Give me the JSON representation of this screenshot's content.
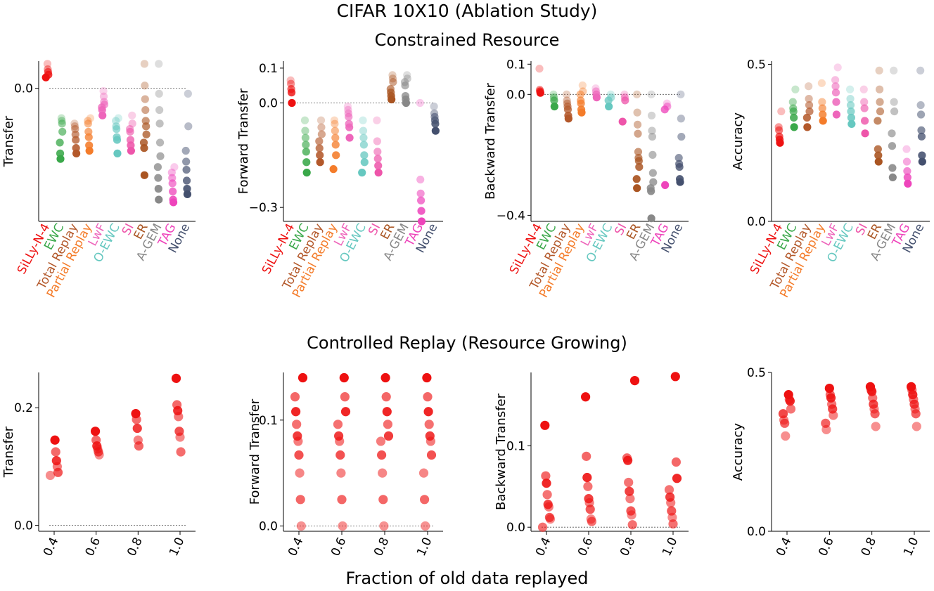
{
  "title": "CIFAR 10X10 (Ablation Study)",
  "top_subtitle": "Constrained Resource",
  "bottom_subtitle": "Controlled Replay (Resource Growing)",
  "bottom_xlabel": "Fraction of old data replayed",
  "colors": {
    "SiLLy-N-4": "#ee1111",
    "EWC": "#3aa84a",
    "Total Replay": "#b3582a",
    "Partial Replay": "#f47c2a",
    "LwF": "#ee66bb",
    "O-EWC": "#66c8c0",
    "SI": "#ee55aa",
    "ER": "#aa5522",
    "A-GEM": "#888888",
    "TAG": "#ee44bb",
    "None": "#44506e"
  },
  "chart_data": [
    {
      "type": "scatter",
      "ylabel": "Transfer",
      "ylim": [
        -0.49,
        0.1
      ],
      "yticks": [
        {
          "v": 0.0,
          "label": "0.0"
        }
      ],
      "zero_line": true,
      "categories": [
        "SiLLy-N-4",
        "EWC",
        "Total Replay",
        "Partial Replay",
        "LwF",
        "O-EWC",
        "SI",
        "ER",
        "A-GEM",
        "TAG",
        "None"
      ],
      "series": [
        {
          "name": "SiLLy-N-4",
          "values": [
            0.09,
            0.07,
            0.06,
            0.05,
            0.04
          ]
        },
        {
          "name": "EWC",
          "values": [
            -0.11,
            -0.12,
            -0.13,
            -0.16,
            -0.2,
            -0.24,
            -0.26
          ]
        },
        {
          "name": "Total Replay",
          "values": [
            -0.13,
            -0.14,
            -0.15,
            -0.17,
            -0.19,
            -0.22,
            -0.24
          ]
        },
        {
          "name": "Partial Replay",
          "values": [
            -0.11,
            -0.12,
            -0.13,
            -0.16,
            -0.18,
            -0.21,
            -0.23
          ]
        },
        {
          "name": "LwF",
          "values": [
            -0.01,
            -0.03,
            -0.05,
            -0.06,
            -0.07,
            -0.08,
            -0.1
          ]
        },
        {
          "name": "O-EWC",
          "values": [
            -0.11,
            -0.12,
            -0.14,
            -0.15,
            -0.18,
            -0.19,
            -0.24
          ]
        },
        {
          "name": "SI",
          "values": [
            -0.1,
            -0.13,
            -0.15,
            -0.16,
            -0.19,
            -0.21,
            -0.23
          ]
        },
        {
          "name": "ER",
          "values": [
            0.09,
            0.01,
            -0.04,
            -0.08,
            -0.12,
            -0.14,
            -0.17,
            -0.2,
            -0.22,
            -0.32
          ]
        },
        {
          "name": "A-GEM",
          "values": [
            0.09,
            -0.02,
            -0.08,
            -0.13,
            -0.2,
            -0.25,
            -0.29,
            -0.33,
            -0.37,
            -0.41
          ]
        },
        {
          "name": "TAG",
          "values": [
            -0.29,
            -0.31,
            -0.33,
            -0.35,
            -0.38,
            -0.41,
            -0.42
          ]
        },
        {
          "name": "None",
          "values": [
            -0.02,
            -0.14,
            -0.23,
            -0.27,
            -0.3,
            -0.34,
            -0.37,
            -0.39
          ]
        }
      ]
    },
    {
      "type": "scatter",
      "ylabel": "Forward Transfer",
      "ylim": [
        -0.34,
        0.12
      ],
      "yticks": [
        {
          "v": 0.1,
          "label": "0.1"
        },
        {
          "v": 0.0,
          "label": "0.0"
        },
        {
          "v": -0.3,
          "label": "−0.3"
        }
      ],
      "zero_line": true,
      "categories": [
        "SiLLy-N-4",
        "EWC",
        "Total Replay",
        "Partial Replay",
        "LwF",
        "O-EWC",
        "SI",
        "ER",
        "A-GEM",
        "TAG",
        "None"
      ],
      "series": [
        {
          "name": "SiLLy-N-4",
          "values": [
            0.065,
            0.055,
            0.04,
            0.03,
            0.0
          ]
        },
        {
          "name": "EWC",
          "values": [
            -0.05,
            -0.08,
            -0.1,
            -0.12,
            -0.14,
            -0.17,
            -0.2
          ]
        },
        {
          "name": "Total Replay",
          "values": [
            -0.05,
            -0.07,
            -0.09,
            -0.11,
            -0.13,
            -0.15,
            -0.17
          ]
        },
        {
          "name": "Partial Replay",
          "values": [
            -0.05,
            -0.06,
            -0.08,
            -0.1,
            -0.12,
            -0.15,
            -0.19
          ]
        },
        {
          "name": "LwF",
          "values": [
            -0.01,
            -0.02,
            -0.03,
            -0.04,
            -0.06,
            -0.07,
            -0.1
          ]
        },
        {
          "name": "O-EWC",
          "values": [
            -0.05,
            -0.08,
            -0.1,
            -0.12,
            -0.15,
            -0.17,
            -0.2
          ]
        },
        {
          "name": "SI",
          "values": [
            -0.05,
            -0.11,
            -0.14,
            -0.16,
            -0.18,
            -0.2
          ]
        },
        {
          "name": "ER",
          "values": [
            0.08,
            0.07,
            0.06,
            0.04,
            0.03,
            0.02,
            0.01
          ]
        },
        {
          "name": "A-GEM",
          "values": [
            0.08,
            0.07,
            0.06,
            0.05,
            0.02,
            0.01,
            0.0
          ]
        },
        {
          "name": "TAG",
          "values": [
            0.0,
            -0.22,
            -0.26,
            -0.28,
            -0.31,
            -0.34
          ]
        },
        {
          "name": "None",
          "values": [
            -0.01,
            -0.03,
            -0.04,
            -0.05,
            -0.06,
            -0.08
          ]
        }
      ]
    },
    {
      "type": "scatter",
      "ylabel": "Backward Transfer",
      "ylim": [
        -0.42,
        0.11
      ],
      "yticks": [
        {
          "v": 0.1,
          "label": "0.1"
        },
        {
          "v": 0.0,
          "label": "0.0"
        },
        {
          "v": -0.4,
          "label": "−0.4"
        }
      ],
      "zero_line": true,
      "categories": [
        "SiLLy-N-4",
        "EWC",
        "Total Replay",
        "Partial Replay",
        "LwF",
        "O-EWC",
        "SI",
        "ER",
        "A-GEM",
        "TAG",
        "None"
      ],
      "series": [
        {
          "name": "SiLLy-N-4",
          "values": [
            0.085,
            0.015,
            0.01,
            0.005
          ]
        },
        {
          "name": "EWC",
          "values": [
            0.0,
            -0.01,
            -0.02,
            -0.04
          ]
        },
        {
          "name": "Total Replay",
          "values": [
            0.0,
            -0.02,
            -0.03,
            -0.04,
            -0.05,
            -0.07,
            -0.08
          ]
        },
        {
          "name": "Partial Replay",
          "values": [
            0.03,
            0.01,
            0.0,
            -0.02,
            -0.03,
            -0.05,
            -0.06
          ]
        },
        {
          "name": "LwF",
          "values": [
            0.02,
            0.01,
            0.0,
            -0.01
          ]
        },
        {
          "name": "O-EWC",
          "values": [
            0.0,
            -0.01,
            -0.02,
            -0.04
          ]
        },
        {
          "name": "SI",
          "values": [
            0.0,
            -0.01,
            -0.02,
            -0.09
          ]
        },
        {
          "name": "ER",
          "values": [
            0.0,
            -0.06,
            -0.1,
            -0.13,
            -0.19,
            -0.21,
            -0.22,
            -0.24,
            -0.28,
            -0.31
          ]
        },
        {
          "name": "A-GEM",
          "values": [
            0.0,
            -0.07,
            -0.12,
            -0.14,
            -0.2,
            -0.26,
            -0.29,
            -0.31,
            -0.32,
            -0.41
          ]
        },
        {
          "name": "TAG",
          "values": [
            -0.03,
            -0.04,
            -0.05,
            -0.3
          ]
        },
        {
          "name": "None",
          "values": [
            0.0,
            -0.08,
            -0.14,
            -0.21,
            -0.23,
            -0.24,
            -0.28,
            -0.29
          ]
        }
      ]
    },
    {
      "type": "scatter",
      "ylabel": "Accuracy",
      "ylim": [
        0.0,
        0.51
      ],
      "yticks": [
        {
          "v": 0.5,
          "label": "0.5"
        },
        {
          "v": 0.0,
          "label": "0.0"
        }
      ],
      "zero_line": false,
      "categories": [
        "SiLLy-N-4",
        "EWC",
        "Total Replay",
        "Partial Replay",
        "LwF",
        "O-EWC",
        "SI",
        "ER",
        "A-GEM",
        "TAG",
        "None"
      ],
      "series": [
        {
          "name": "SiLLy-N-4",
          "values": [
            0.35,
            0.3,
            0.29,
            0.27,
            0.26,
            0.25
          ]
        },
        {
          "name": "EWC",
          "values": [
            0.42,
            0.38,
            0.36,
            0.35,
            0.33,
            0.3
          ]
        },
        {
          "name": "Total Replay",
          "values": [
            0.43,
            0.39,
            0.37,
            0.35,
            0.33,
            0.3
          ]
        },
        {
          "name": "Partial Replay",
          "values": [
            0.44,
            0.38,
            0.36,
            0.34,
            0.32
          ]
        },
        {
          "name": "LwF",
          "values": [
            0.49,
            0.45,
            0.43,
            0.41,
            0.38,
            0.34
          ]
        },
        {
          "name": "O-EWC",
          "values": [
            0.42,
            0.39,
            0.37,
            0.35,
            0.33,
            0.31
          ]
        },
        {
          "name": "SI",
          "values": [
            0.42,
            0.38,
            0.36,
            0.32,
            0.28
          ]
        },
        {
          "name": "ER",
          "values": [
            0.48,
            0.42,
            0.38,
            0.35,
            0.32,
            0.23,
            0.21,
            0.19
          ]
        },
        {
          "name": "A-GEM",
          "values": [
            0.48,
            0.38,
            0.35,
            0.28,
            0.24,
            0.17,
            0.14
          ]
        },
        {
          "name": "TAG",
          "values": [
            0.23,
            0.19,
            0.16,
            0.14,
            0.12
          ]
        },
        {
          "name": "None",
          "values": [
            0.48,
            0.37,
            0.34,
            0.29,
            0.27,
            0.21,
            0.19
          ]
        }
      ]
    },
    {
      "type": "scatter",
      "ylabel": "Transfer",
      "ylim": [
        -0.01,
        0.26
      ],
      "yticks": [
        {
          "v": 0.2,
          "label": "0.2"
        },
        {
          "v": 0.0,
          "label": "0.0"
        }
      ],
      "zero_line": true,
      "x": [
        0.4,
        0.6,
        0.8,
        1.0
      ],
      "xticklabels": [
        "0.4",
        "0.6",
        "0.8",
        "1.0"
      ],
      "groups": [
        [
          0.145,
          0.125,
          0.11,
          0.1,
          0.09,
          0.085
        ],
        [
          0.16,
          0.145,
          0.135,
          0.13,
          0.125,
          0.12
        ],
        [
          0.19,
          0.18,
          0.165,
          0.145,
          0.135
        ],
        [
          0.25,
          0.205,
          0.195,
          0.185,
          0.16,
          0.15,
          0.125
        ]
      ]
    },
    {
      "type": "scatter",
      "ylabel": "Forward Transfer",
      "ylim": [
        -0.005,
        0.145
      ],
      "yticks": [
        {
          "v": 0.1,
          "label": "0.1"
        },
        {
          "v": 0.0,
          "label": "0.0"
        }
      ],
      "zero_line": true,
      "x": [
        0.4,
        0.6,
        0.8,
        1.0
      ],
      "xticklabels": [
        "0.4",
        "0.6",
        "0.8",
        "1.0"
      ],
      "groups": [
        [
          0.14,
          0.122,
          0.108,
          0.096,
          0.085,
          0.08,
          0.067,
          0.05,
          0.025,
          0.0
        ],
        [
          0.14,
          0.122,
          0.108,
          0.096,
          0.085,
          0.08,
          0.067,
          0.05,
          0.025,
          0.0
        ],
        [
          0.14,
          0.122,
          0.108,
          0.096,
          0.085,
          0.08,
          0.067,
          0.05,
          0.025,
          0.0
        ],
        [
          0.14,
          0.122,
          0.108,
          0.096,
          0.085,
          0.08,
          0.067,
          0.05,
          0.025,
          0.0
        ]
      ]
    },
    {
      "type": "scatter",
      "ylabel": "Backward Transfer",
      "ylim": [
        -0.005,
        0.19
      ],
      "yticks": [
        {
          "v": 0.1,
          "label": "0.1"
        },
        {
          "v": 0.0,
          "label": "0.0"
        }
      ],
      "zero_line": true,
      "x": [
        0.4,
        0.6,
        0.8,
        1.0
      ],
      "xticklabels": [
        "0.4",
        "0.6",
        "0.8",
        "1.0"
      ],
      "groups": [
        [
          0.125,
          0.063,
          0.054,
          0.04,
          0.028,
          0.025,
          0.012,
          0.01,
          0.0
        ],
        [
          0.16,
          0.087,
          0.061,
          0.05,
          0.035,
          0.03,
          0.022,
          0.01,
          0.007
        ],
        [
          0.18,
          0.085,
          0.082,
          0.055,
          0.044,
          0.035,
          0.02,
          0.015,
          0.003
        ],
        [
          0.185,
          0.08,
          0.06,
          0.046,
          0.037,
          0.03,
          0.02,
          0.012,
          0.004
        ]
      ]
    },
    {
      "type": "scatter",
      "ylabel": "Accuracy",
      "ylim": [
        0.0,
        0.5
      ],
      "yticks": [
        {
          "v": 0.5,
          "label": "0.5"
        },
        {
          "v": 0.0,
          "label": "0.0"
        }
      ],
      "zero_line": false,
      "x": [
        0.4,
        0.6,
        0.8,
        1.0
      ],
      "xticklabels": [
        "0.4",
        "0.6",
        "0.8",
        "1.0"
      ],
      "groups": [
        [
          0.43,
          0.415,
          0.41,
          0.385,
          0.37,
          0.35,
          0.34,
          0.3
        ],
        [
          0.45,
          0.43,
          0.42,
          0.4,
          0.385,
          0.365,
          0.34,
          0.32
        ],
        [
          0.455,
          0.445,
          0.44,
          0.42,
          0.4,
          0.385,
          0.37,
          0.33
        ],
        [
          0.455,
          0.445,
          0.43,
          0.415,
          0.4,
          0.385,
          0.37,
          0.33
        ]
      ]
    }
  ]
}
